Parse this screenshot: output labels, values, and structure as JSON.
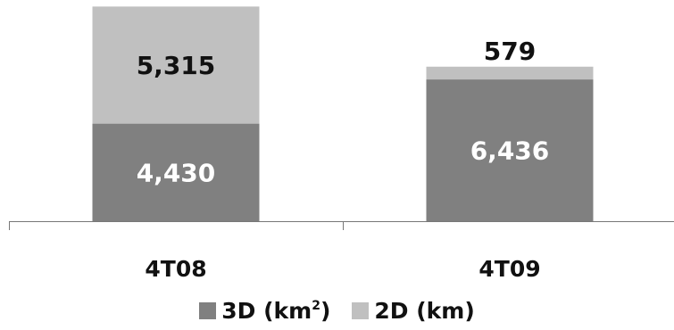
{
  "chart_data": {
    "type": "bar",
    "stacked": true,
    "categories": [
      "4T08",
      "4T09"
    ],
    "series": [
      {
        "name": "3D (km2)",
        "values": [
          4430,
          6436
        ],
        "labels": [
          "4,430",
          "6,436"
        ],
        "color": "#808080",
        "label_color": "#ffffff"
      },
      {
        "name": "2D (km)",
        "values": [
          5315,
          579
        ],
        "labels": [
          "5,315",
          "579"
        ],
        "color": "#c0c0c0",
        "label_color": "#111111"
      }
    ],
    "legend_position": "bottom",
    "grid": false
  },
  "legend": {
    "items": [
      {
        "base": "3D (km",
        "sup": "2",
        "tail": ")",
        "color": "#808080"
      },
      {
        "base": "2D (km)",
        "sup": "",
        "tail": "",
        "color": "#c0c0c0"
      }
    ]
  }
}
